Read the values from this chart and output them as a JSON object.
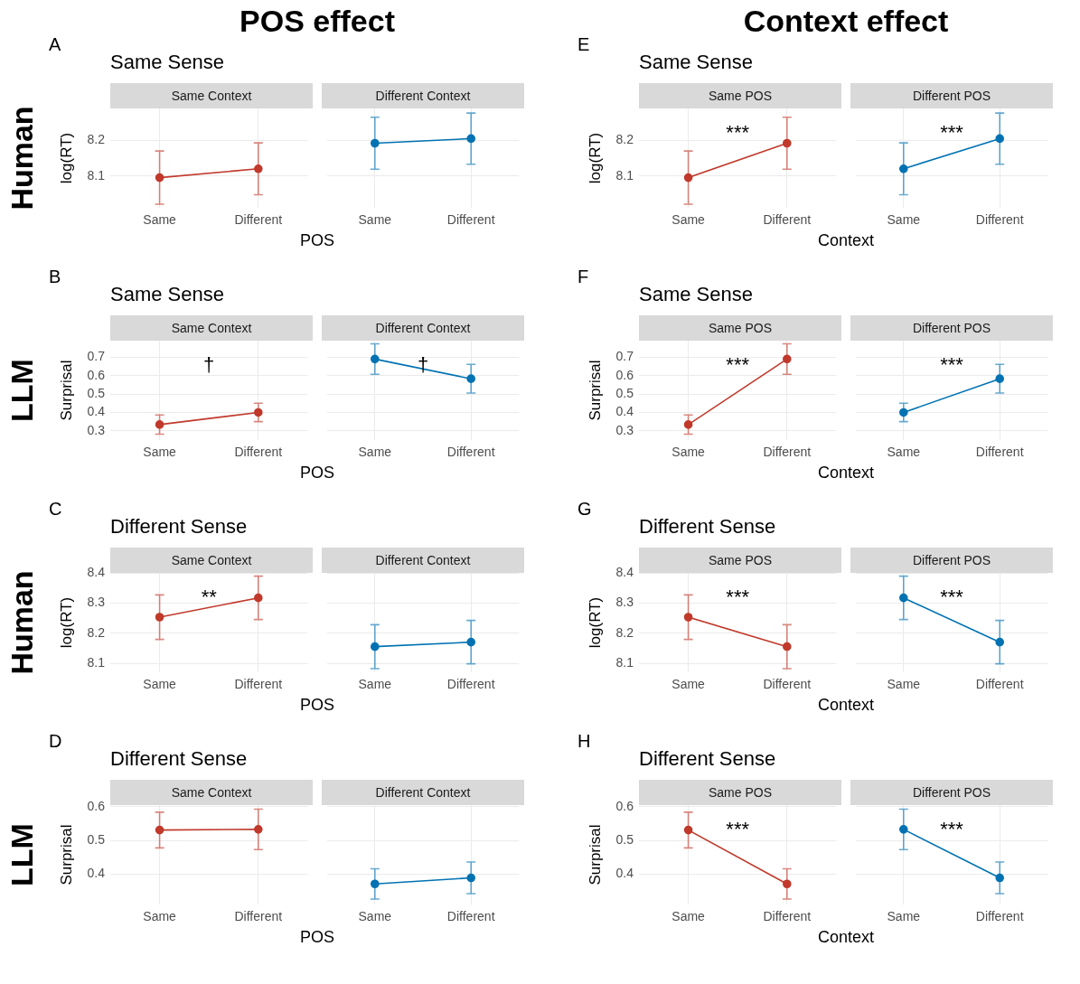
{
  "chart_data": [
    {
      "type": "line",
      "title": "Same Context",
      "subtitle": "Same Sense",
      "xlabel": "POS",
      "ylabel": "log(RT)",
      "categories": [
        "Same",
        "Different"
      ],
      "series": [
        {
          "color": "#c0392b",
          "values": [
            8.095,
            8.12
          ],
          "errors": [
            0.075,
            0.073
          ]
        }
      ],
      "ylim": [
        8.01,
        8.29
      ],
      "yticks": [
        8.1,
        8.2
      ],
      "grid": true,
      "marker": "circle",
      "annotations": [
        "A",
        "Human",
        "POS effect"
      ]
    },
    {
      "type": "line",
      "title": "Different Context",
      "categories": [
        "Same",
        "Different"
      ],
      "series": [
        {
          "color": "#0072b2",
          "values": [
            8.192,
            8.205
          ],
          "errors": [
            0.073,
            0.072
          ]
        }
      ],
      "ylim": [
        8.01,
        8.29
      ],
      "yticks": [
        8.1,
        8.2
      ],
      "grid": true,
      "marker": "circle",
      "tick_labels": "x"
    },
    {
      "type": "line",
      "title": "Same POS",
      "subtitle": "Same Sense",
      "xlabel": "Context",
      "ylabel": "log(RT)",
      "categories": [
        "Same",
        "Different"
      ],
      "series": [
        {
          "color": "#c0392b",
          "values": [
            8.095,
            8.192
          ],
          "errors": [
            0.075,
            0.073
          ]
        }
      ],
      "ylim": [
        8.01,
        8.29
      ],
      "yticks": [
        8.1,
        8.2
      ],
      "grid": true,
      "marker": "circle",
      "annotations": [
        "E",
        "Context effect",
        "***"
      ]
    },
    {
      "type": "line",
      "title": "Different POS",
      "categories": [
        "Same",
        "Different"
      ],
      "series": [
        {
          "color": "#0072b2",
          "values": [
            8.12,
            8.205
          ],
          "errors": [
            0.073,
            0.072
          ]
        }
      ],
      "ylim": [
        8.01,
        8.29
      ],
      "yticks": [
        8.1,
        8.2
      ],
      "grid": true,
      "marker": "circle",
      "tick_labels": "x",
      "annotations": [
        "***"
      ]
    },
    {
      "type": "line",
      "title": "Same Context",
      "subtitle": "Same Sense",
      "xlabel": "POS",
      "ylabel": "Surprisal",
      "categories": [
        "Same",
        "Different"
      ],
      "series": [
        {
          "color": "#c0392b",
          "values": [
            0.334,
            0.4
          ],
          "errors": [
            0.052,
            0.05
          ]
        }
      ],
      "ylim": [
        0.25,
        0.79
      ],
      "yticks": [
        0.3,
        0.4,
        0.5,
        0.6,
        0.7
      ],
      "grid": true,
      "marker": "circle",
      "annotations": [
        "B",
        "LLM",
        "†"
      ]
    },
    {
      "type": "line",
      "title": "Different Context",
      "categories": [
        "Same",
        "Different"
      ],
      "series": [
        {
          "color": "#0072b2",
          "values": [
            0.69,
            0.583
          ],
          "errors": [
            0.083,
            0.078
          ]
        }
      ],
      "ylim": [
        0.25,
        0.79
      ],
      "yticks": [
        0.3,
        0.4,
        0.5,
        0.6,
        0.7
      ],
      "grid": true,
      "marker": "circle",
      "tick_labels": "x",
      "annotations": [
        "†"
      ]
    },
    {
      "type": "line",
      "title": "Same POS",
      "subtitle": "Same Sense",
      "xlabel": "Context",
      "ylabel": "Surprisal",
      "categories": [
        "Same",
        "Different"
      ],
      "series": [
        {
          "color": "#c0392b",
          "values": [
            0.334,
            0.69
          ],
          "errors": [
            0.052,
            0.083
          ]
        }
      ],
      "ylim": [
        0.25,
        0.79
      ],
      "yticks": [
        0.3,
        0.4,
        0.5,
        0.6,
        0.7
      ],
      "grid": true,
      "marker": "circle",
      "annotations": [
        "F",
        "***"
      ]
    },
    {
      "type": "line",
      "title": "Different POS",
      "categories": [
        "Same",
        "Different"
      ],
      "series": [
        {
          "color": "#0072b2",
          "values": [
            0.4,
            0.583
          ],
          "errors": [
            0.05,
            0.078
          ]
        }
      ],
      "ylim": [
        0.25,
        0.79
      ],
      "yticks": [
        0.3,
        0.4,
        0.5,
        0.6,
        0.7
      ],
      "grid": true,
      "marker": "circle",
      "tick_labels": "x",
      "annotations": [
        "***"
      ]
    },
    {
      "type": "line",
      "title": "Same Context",
      "subtitle": "Different Sense",
      "xlabel": "POS",
      "ylabel": "log(RT)",
      "categories": [
        "Same",
        "Different"
      ],
      "series": [
        {
          "color": "#c0392b",
          "values": [
            8.253,
            8.317
          ],
          "errors": [
            0.074,
            0.072
          ]
        }
      ],
      "ylim": [
        8.07,
        8.4
      ],
      "yticks": [
        8.1,
        8.2,
        8.3,
        8.4
      ],
      "grid": true,
      "marker": "circle",
      "annotations": [
        "C",
        "Human",
        "**"
      ]
    },
    {
      "type": "line",
      "title": "Different Context",
      "categories": [
        "Same",
        "Different"
      ],
      "series": [
        {
          "color": "#0072b2",
          "values": [
            8.155,
            8.17
          ],
          "errors": [
            0.073,
            0.072
          ]
        }
      ],
      "ylim": [
        8.07,
        8.4
      ],
      "yticks": [
        8.1,
        8.2,
        8.3,
        8.4
      ],
      "grid": true,
      "marker": "circle",
      "tick_labels": "x"
    },
    {
      "type": "line",
      "title": "Same POS",
      "subtitle": "Different Sense",
      "xlabel": "Context",
      "ylabel": "log(RT)",
      "categories": [
        "Same",
        "Different"
      ],
      "series": [
        {
          "color": "#c0392b",
          "values": [
            8.253,
            8.155
          ],
          "errors": [
            0.074,
            0.073
          ]
        }
      ],
      "ylim": [
        8.07,
        8.4
      ],
      "yticks": [
        8.1,
        8.2,
        8.3,
        8.4
      ],
      "grid": true,
      "marker": "circle",
      "annotations": [
        "G",
        "***"
      ]
    },
    {
      "type": "line",
      "title": "Different POS",
      "categories": [
        "Same",
        "Different"
      ],
      "series": [
        {
          "color": "#0072b2",
          "values": [
            8.317,
            8.17
          ],
          "errors": [
            0.072,
            0.072
          ]
        }
      ],
      "ylim": [
        8.07,
        8.4
      ],
      "yticks": [
        8.1,
        8.2,
        8.3,
        8.4
      ],
      "grid": true,
      "marker": "circle",
      "tick_labels": "x",
      "annotations": [
        "***"
      ]
    },
    {
      "type": "line",
      "title": "Same Context",
      "subtitle": "Different Sense",
      "xlabel": "POS",
      "ylabel": "Surprisal",
      "categories": [
        "Same",
        "Different"
      ],
      "series": [
        {
          "color": "#c0392b",
          "values": [
            0.531,
            0.533
          ],
          "errors": [
            0.053,
            0.06
          ]
        }
      ],
      "ylim": [
        0.31,
        0.605
      ],
      "yticks": [
        0.4,
        0.5,
        0.6
      ],
      "grid": true,
      "marker": "circle",
      "annotations": [
        "D",
        "LLM"
      ]
    },
    {
      "type": "line",
      "title": "Different Context",
      "categories": [
        "Same",
        "Different"
      ],
      "series": [
        {
          "color": "#0072b2",
          "values": [
            0.371,
            0.389
          ],
          "errors": [
            0.045,
            0.047
          ]
        }
      ],
      "ylim": [
        0.31,
        0.605
      ],
      "yticks": [
        0.4,
        0.5,
        0.6
      ],
      "grid": true,
      "marker": "circle",
      "tick_labels": "x"
    },
    {
      "type": "line",
      "title": "Same POS",
      "subtitle": "Different Sense",
      "xlabel": "Context",
      "ylabel": "Surprisal",
      "categories": [
        "Same",
        "Different"
      ],
      "series": [
        {
          "color": "#c0392b",
          "values": [
            0.531,
            0.371
          ],
          "errors": [
            0.053,
            0.045
          ]
        }
      ],
      "ylim": [
        0.31,
        0.605
      ],
      "yticks": [
        0.4,
        0.5,
        0.6
      ],
      "grid": true,
      "marker": "circle",
      "annotations": [
        "H",
        "***"
      ]
    },
    {
      "type": "line",
      "title": "Different POS",
      "categories": [
        "Same",
        "Different"
      ],
      "series": [
        {
          "color": "#0072b2",
          "values": [
            0.533,
            0.389
          ],
          "errors": [
            0.06,
            0.047
          ]
        }
      ],
      "ylim": [
        0.31,
        0.605
      ],
      "yticks": [
        0.4,
        0.5,
        0.6
      ],
      "grid": true,
      "marker": "circle",
      "tick_labels": "x",
      "annotations": [
        "***"
      ]
    }
  ]
}
